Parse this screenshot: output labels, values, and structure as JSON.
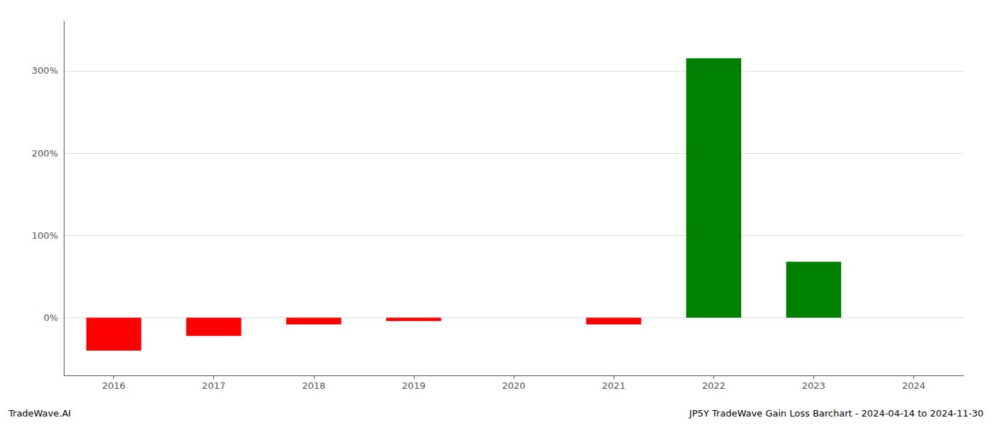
{
  "chart_data": {
    "type": "bar",
    "categories": [
      "2016",
      "2017",
      "2018",
      "2019",
      "2020",
      "2021",
      "2022",
      "2023",
      "2024"
    ],
    "values": [
      -40,
      -22,
      -8,
      -4,
      0,
      -8,
      315,
      68,
      0
    ],
    "colors": [
      "#ff0000",
      "#ff0000",
      "#ff0000",
      "#ff0000",
      "#ff0000",
      "#ff0000",
      "#008000",
      "#008000",
      "#ff0000"
    ],
    "ylim": [
      -70,
      360
    ],
    "yticks": [
      {
        "value": 0,
        "label": "0%"
      },
      {
        "value": 100,
        "label": "100%"
      },
      {
        "value": 200,
        "label": "200%"
      },
      {
        "value": 300,
        "label": "300%"
      }
    ],
    "grid": true,
    "annotations": [
      "TradeWave.AI",
      "JP5Y TradeWave Gain Loss Barchart - 2024-04-14 to 2024-11-30"
    ]
  }
}
